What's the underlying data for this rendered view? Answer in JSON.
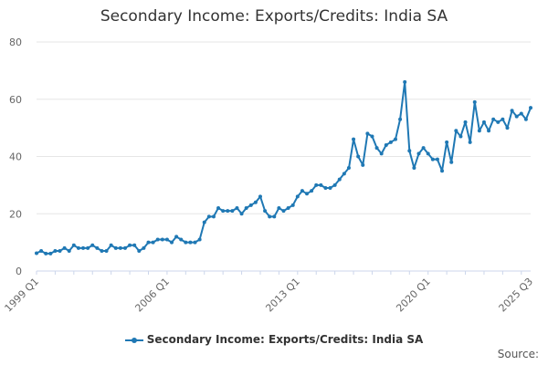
{
  "credits": "Source:",
  "chart_data": {
    "type": "line",
    "title": "Secondary Income: Exports/Credits: India SA",
    "xlabel": "",
    "ylabel": "",
    "ylim": [
      0,
      80
    ],
    "yticks": [
      0,
      20,
      40,
      60,
      80
    ],
    "xticks": [
      "1999 Q1",
      "2006 Q1",
      "2013 Q1",
      "2020 Q1",
      "2025 Q3"
    ],
    "grid": true,
    "legend": "bottom-center",
    "colors": {
      "series": "#1f78b4",
      "grid": "#e6e6e6",
      "axis": "#ccd6eb"
    },
    "series": [
      {
        "name": "Secondary Income: Exports/Credits: India SA",
        "x": [
          "1999 Q1",
          "1999 Q2",
          "1999 Q3",
          "1999 Q4",
          "2000 Q1",
          "2000 Q2",
          "2000 Q3",
          "2000 Q4",
          "2001 Q1",
          "2001 Q2",
          "2001 Q3",
          "2001 Q4",
          "2002 Q1",
          "2002 Q2",
          "2002 Q3",
          "2002 Q4",
          "2003 Q1",
          "2003 Q2",
          "2003 Q3",
          "2003 Q4",
          "2004 Q1",
          "2004 Q2",
          "2004 Q3",
          "2004 Q4",
          "2005 Q1",
          "2005 Q2",
          "2005 Q3",
          "2005 Q4",
          "2006 Q1",
          "2006 Q2",
          "2006 Q3",
          "2006 Q4",
          "2007 Q1",
          "2007 Q2",
          "2007 Q3",
          "2007 Q4",
          "2008 Q1",
          "2008 Q2",
          "2008 Q3",
          "2008 Q4",
          "2009 Q1",
          "2009 Q2",
          "2009 Q3",
          "2009 Q4",
          "2010 Q1",
          "2010 Q2",
          "2010 Q3",
          "2010 Q4",
          "2011 Q1",
          "2011 Q2",
          "2011 Q3",
          "2011 Q4",
          "2012 Q1",
          "2012 Q2",
          "2012 Q3",
          "2012 Q4",
          "2013 Q1",
          "2013 Q2",
          "2013 Q3",
          "2013 Q4",
          "2014 Q1",
          "2014 Q2",
          "2014 Q3",
          "2014 Q4",
          "2015 Q1",
          "2015 Q2",
          "2015 Q3",
          "2015 Q4",
          "2016 Q1",
          "2016 Q2",
          "2016 Q3",
          "2016 Q4",
          "2017 Q1",
          "2017 Q2",
          "2017 Q3",
          "2017 Q4",
          "2018 Q1",
          "2018 Q2",
          "2018 Q3",
          "2018 Q4",
          "2019 Q1",
          "2019 Q2",
          "2019 Q3",
          "2019 Q4",
          "2020 Q1",
          "2020 Q2",
          "2020 Q3",
          "2020 Q4",
          "2021 Q1",
          "2021 Q2",
          "2021 Q3",
          "2021 Q4",
          "2022 Q1",
          "2022 Q2",
          "2022 Q3",
          "2022 Q4",
          "2023 Q1",
          "2023 Q2",
          "2023 Q3",
          "2023 Q4",
          "2024 Q1",
          "2024 Q2",
          "2024 Q3",
          "2024 Q4",
          "2025 Q1",
          "2025 Q2",
          "2025 Q3"
        ],
        "values": [
          6.2,
          7,
          6.1,
          6.1,
          7,
          7,
          8,
          7,
          9,
          8,
          8,
          8,
          9,
          8,
          7,
          7,
          9,
          8,
          8,
          8,
          9,
          9,
          7,
          8,
          10,
          10,
          11,
          11,
          11,
          10,
          12,
          11,
          10,
          10,
          10,
          11,
          17,
          19,
          19,
          22,
          21,
          21,
          21,
          22,
          20,
          22,
          23,
          24,
          26,
          21,
          19,
          19,
          22,
          21,
          22,
          23,
          26,
          28,
          27,
          28,
          30,
          30,
          29,
          29,
          30,
          32,
          34,
          36,
          46,
          40,
          37,
          48,
          47,
          43,
          41,
          44,
          45,
          46,
          53,
          66,
          42,
          36,
          41,
          43,
          41,
          39,
          39,
          35,
          45,
          38,
          49,
          47,
          52,
          45,
          59,
          49,
          52,
          49,
          53,
          52,
          53,
          50,
          56,
          54,
          55,
          53,
          57
        ]
      }
    ]
  }
}
